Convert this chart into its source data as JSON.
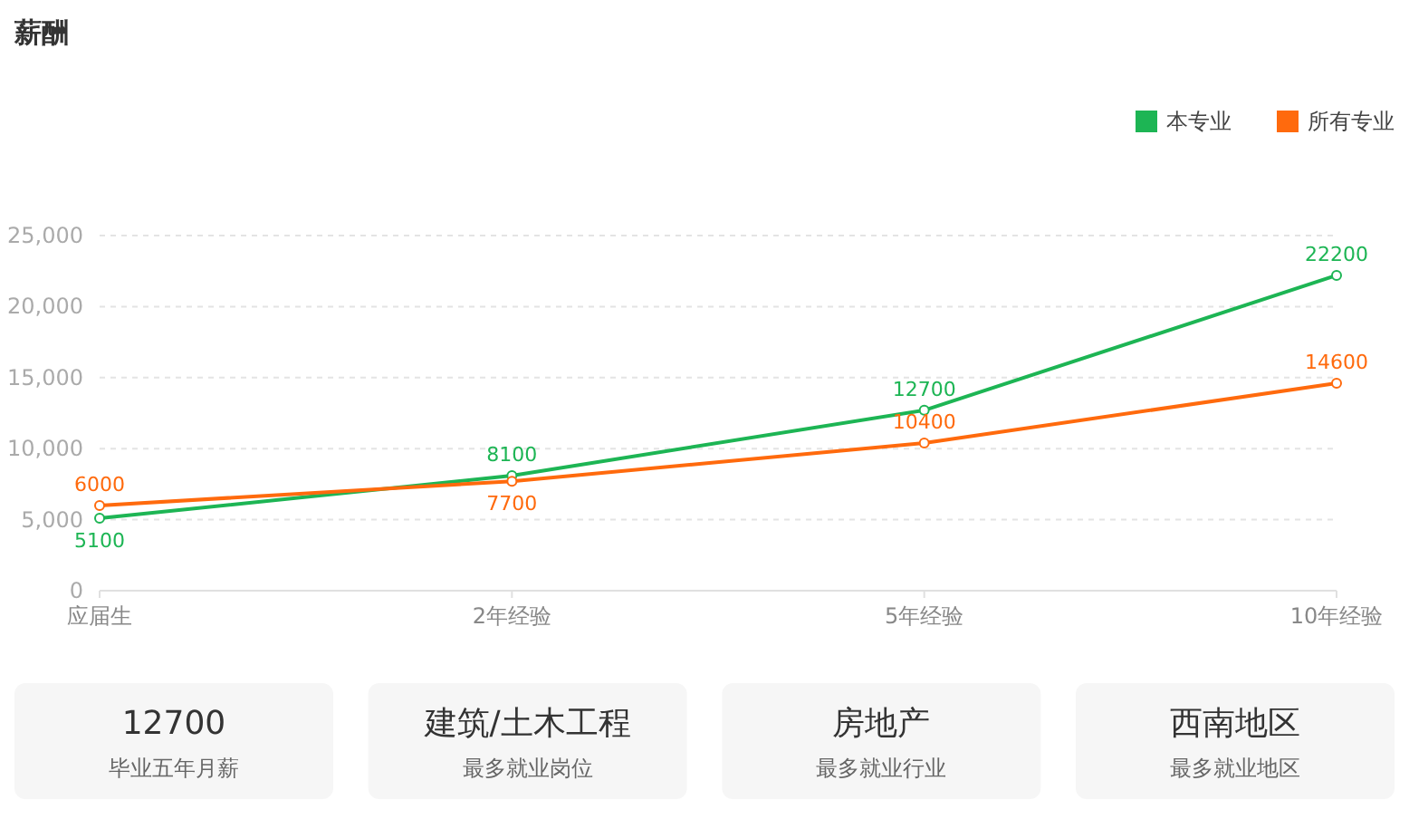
{
  "chart_data": [
    {
      "type": "line",
      "title": "薪酬",
      "categories": [
        "应届生",
        "2年经验",
        "5年经验",
        "10年经验"
      ],
      "series": [
        {
          "name": "本专业",
          "color": "#1db554",
          "values": [
            5100,
            8100,
            12700,
            22200
          ]
        },
        {
          "name": "所有专业",
          "color": "#ff6a0d",
          "values": [
            6000,
            7700,
            10400,
            14600
          ]
        }
      ],
      "ylim": [
        0,
        25000
      ],
      "yticks": [
        0,
        {
          "value": 5000,
          "label": "5,000"
        },
        {
          "value": 10000,
          "label": "10,000"
        },
        {
          "value": 15000,
          "label": "15,000"
        },
        {
          "value": 20000,
          "label": "20,000"
        },
        {
          "value": 25000,
          "label": "25,000"
        }
      ],
      "grid": "y",
      "legend": "top right",
      "marker": "circle",
      "data_labels": true
    },
    {
      "type": "other",
      "annotations": [
        "12700",
        "毕业五年月薪",
        "建筑/土木工程",
        "最多就业岗位",
        "房地产",
        "最多就业行业",
        "西南地区",
        "最多就业地区"
      ]
    }
  ]
}
